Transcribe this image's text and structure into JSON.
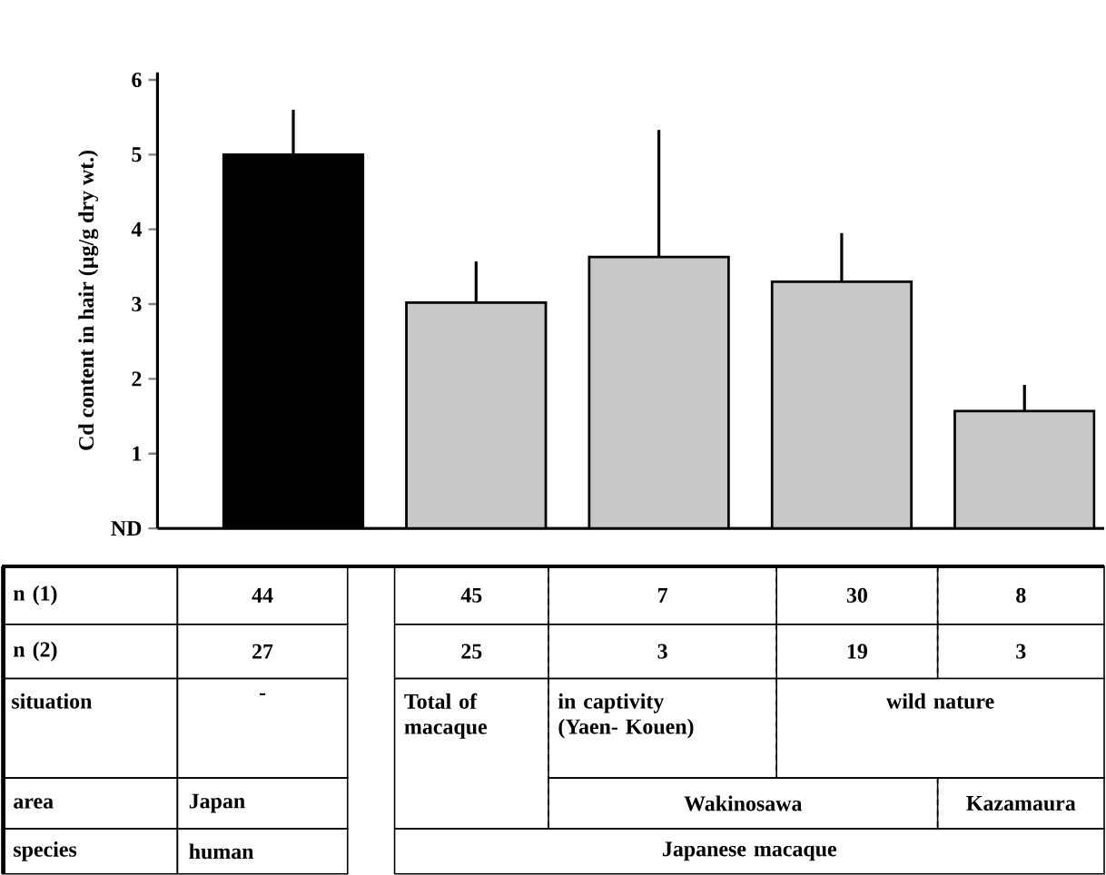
{
  "chart_data": {
    "type": "bar",
    "ylabel": "Cd content in hair (µg/g dry wt.)",
    "categories": [
      null,
      null,
      null,
      null,
      null
    ],
    "values": [
      5.0,
      3.02,
      3.63,
      3.3,
      1.57
    ],
    "errors": [
      0.6,
      0.55,
      1.7,
      0.65,
      0.35
    ],
    "colors": [
      "#000000",
      "#c8c8c8",
      "#c8c8c8",
      "#c8c8c8",
      "#c8c8c8"
    ],
    "ylim": [
      0,
      6.1
    ],
    "yticks": [
      {
        "value": 0,
        "label": "ND"
      },
      1,
      2,
      3,
      4,
      5,
      6
    ],
    "grid": false,
    "annotations": [
      "n (1)",
      "44",
      "45",
      "7",
      "30",
      "8",
      "n (2)",
      "27",
      "25",
      "3",
      "19",
      "3",
      "situation",
      "-",
      "Total of macaque",
      "in captivity (Yaen- Kouen)",
      "wild nature",
      "area",
      "Japan",
      "Wakinosawa",
      "Kazamaura",
      "species",
      "human",
      "Japanese macaque"
    ]
  }
}
